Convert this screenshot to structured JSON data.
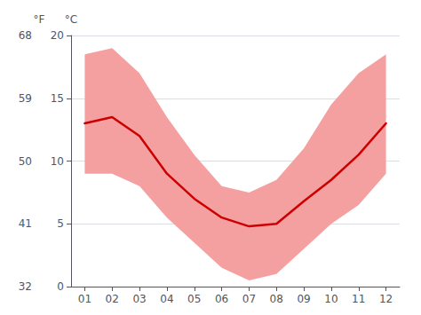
{
  "chart_data": {
    "type": "line",
    "x": [
      1,
      2,
      3,
      4,
      5,
      6,
      7,
      8,
      9,
      10,
      11,
      12
    ],
    "xlim": [
      0.5,
      12.5
    ],
    "xticks": [
      {
        "value": 1,
        "label": "01"
      },
      {
        "value": 2,
        "label": "02"
      },
      {
        "value": 3,
        "label": "03"
      },
      {
        "value": 4,
        "label": "04"
      },
      {
        "value": 5,
        "label": "05"
      },
      {
        "value": 6,
        "label": "06"
      },
      {
        "value": 7,
        "label": "07"
      },
      {
        "value": 8,
        "label": "08"
      },
      {
        "value": 9,
        "label": "09"
      },
      {
        "value": 10,
        "label": "10"
      },
      {
        "value": 11,
        "label": "11"
      },
      {
        "value": 12,
        "label": "12"
      }
    ],
    "ylabel": "°C",
    "ylim": [
      0,
      20
    ],
    "yticks": [
      0,
      5,
      10,
      15,
      20
    ],
    "y2label": "°F",
    "y2lim": [
      32,
      68
    ],
    "y2ticks": [
      32,
      41,
      50,
      59,
      68
    ],
    "grid": true,
    "series": [
      {
        "type": "band",
        "color": "#f5a0a0",
        "lower": [
          9.0,
          9.0,
          8.0,
          5.5,
          3.5,
          1.5,
          0.5,
          1.0,
          3.0,
          5.0,
          6.5,
          9.0
        ],
        "upper": [
          18.5,
          19.0,
          17.0,
          13.5,
          10.5,
          8.0,
          7.5,
          8.5,
          11.0,
          14.5,
          17.0,
          18.5
        ]
      },
      {
        "type": "line",
        "color": "#cc0000",
        "values": [
          13.0,
          13.5,
          12.0,
          9.0,
          7.0,
          5.5,
          4.8,
          5.0,
          6.8,
          8.5,
          10.5,
          13.0
        ]
      }
    ]
  }
}
